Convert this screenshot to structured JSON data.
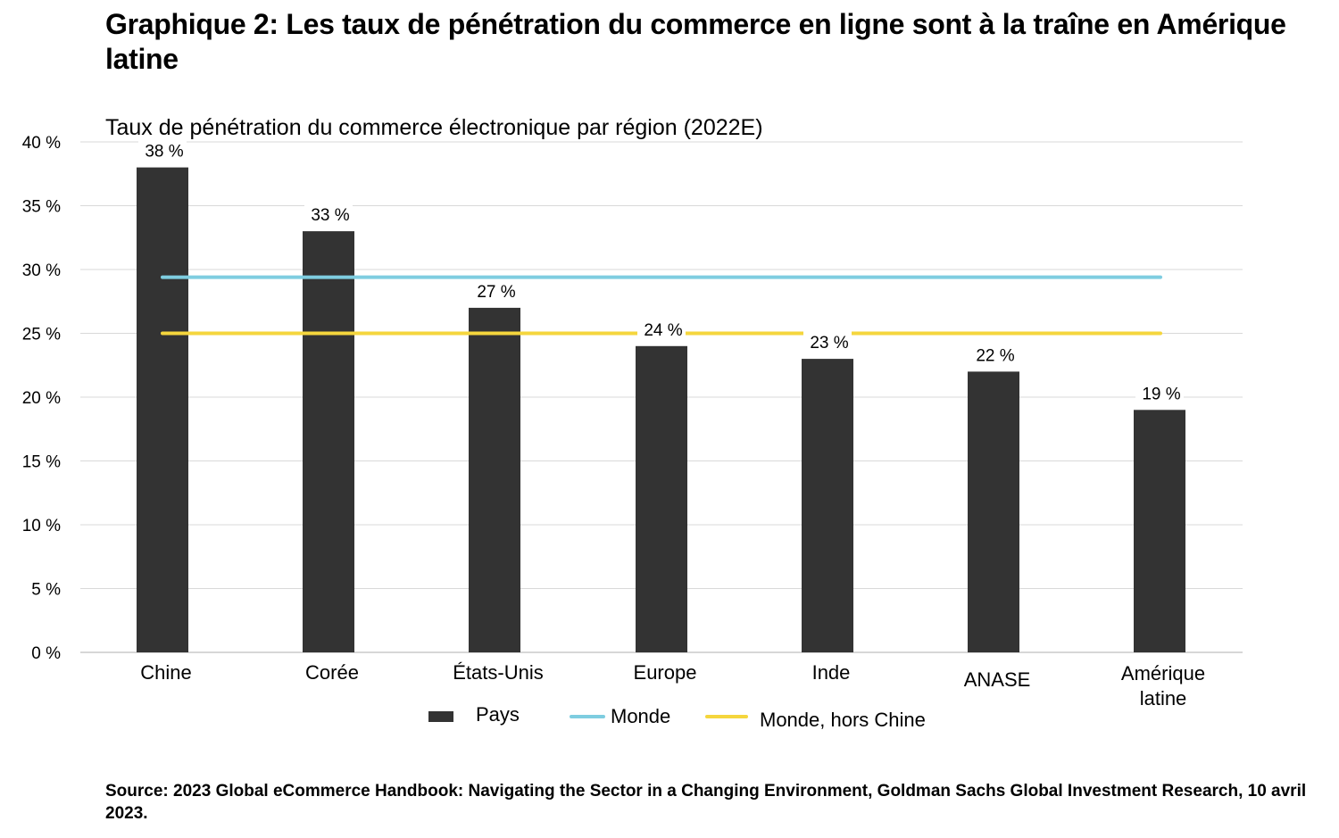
{
  "page": {
    "title": "Graphique 2: Les taux de pénétration du commerce en ligne sont à la traîne en Amérique latine",
    "source": "Source: 2023 Global eCommerce Handbook: Navigating the Sector in a Changing Environment, Goldman Sachs Global Investment Research, 10 avril 2023."
  },
  "chart_data": {
    "type": "bar",
    "title": "Taux de pénétration du commerce électronique par région (2022E)",
    "categories": [
      "Chine",
      "Corée",
      "États-Unis",
      "Europe",
      "Inde",
      "ANASE",
      "Amérique latine"
    ],
    "series": [
      {
        "name": "Pays",
        "type": "bar",
        "color": "#333333",
        "values": [
          38,
          33,
          27,
          24,
          23,
          22,
          19
        ],
        "data_labels": [
          "38 %",
          "33 %",
          "27 %",
          "24 %",
          "23 %",
          "22 %",
          "19 %"
        ]
      }
    ],
    "reference_lines": [
      {
        "name": "Monde",
        "value": 29.4,
        "color": "#7ecde0"
      },
      {
        "name": "Monde, hors Chine",
        "value": 25,
        "color": "#f5d63d"
      }
    ],
    "ylim": [
      0,
      40
    ],
    "yticks": [
      0,
      5,
      10,
      15,
      20,
      25,
      30,
      35,
      40
    ],
    "ytick_labels": [
      "0 %",
      "5 %",
      "10 %",
      "15 %",
      "20 %",
      "25 %",
      "30 %",
      "35 %",
      "40 %"
    ],
    "xlabel": "",
    "ylabel": "",
    "grid": true,
    "legend_position": "bottom",
    "colors": {
      "bar": "#333333",
      "grid": "#d9d9d9",
      "axis": "#bfbfbf"
    }
  }
}
